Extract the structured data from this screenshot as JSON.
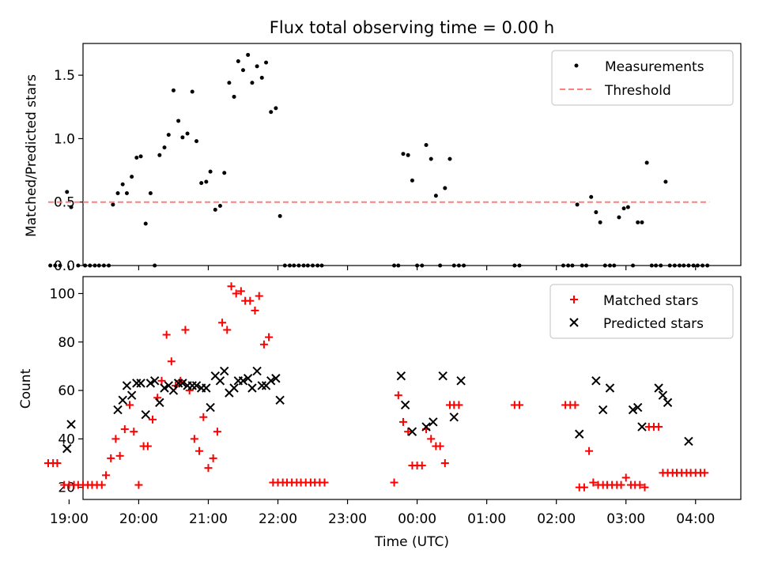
{
  "title": "Flux total observing time = 0.00 h",
  "chart_data": [
    {
      "type": "scatter",
      "title": "Flux total observing time = 0.00 h",
      "xlabel": "",
      "ylabel": "Matched/Predicted stars",
      "x_unit": "hours since 00:00 UTC (negative = previous day)",
      "xlim": [
        -4.8,
        4.65
      ],
      "ylim": [
        0,
        1.75
      ],
      "yticks": [
        0.0,
        0.5,
        1.0,
        1.5
      ],
      "ytick_labels": [
        "0.0",
        "0.5",
        "1.0",
        "1.5"
      ],
      "legend_position": "top-right",
      "colors": {
        "measurements": "#000000",
        "threshold": "#ff7f7f"
      },
      "series": [
        {
          "name": "Measurements",
          "kind": "points",
          "x": [
            -5.27,
            -5.2,
            -5.13,
            -5.03,
            -4.97,
            -4.87,
            -4.77,
            -4.7,
            -4.63,
            -4.57,
            -4.5,
            -4.43,
            -4.37,
            -4.3,
            -4.23,
            -4.17,
            -4.1,
            -4.03,
            -3.97,
            -3.9,
            -3.83,
            -3.77,
            -3.7,
            -3.63,
            -3.57,
            -3.5,
            -3.43,
            -3.37,
            -3.3,
            -3.23,
            -3.17,
            -3.1,
            -3.03,
            -2.97,
            -2.9,
            -2.83,
            -2.77,
            -2.7,
            -2.63,
            -2.57,
            -2.5,
            -2.43,
            -2.37,
            -2.3,
            -2.23,
            -2.17,
            -2.1,
            -2.03,
            -1.97,
            -1.9,
            -1.83,
            -1.77,
            -1.7,
            -1.63,
            -1.57,
            -1.5,
            -1.43,
            -1.37,
            -0.33,
            -0.27,
            -0.2,
            -0.13,
            -0.07,
            0.0,
            0.07,
            0.13,
            0.2,
            0.27,
            0.33,
            0.4,
            0.47,
            0.53,
            0.6,
            0.67,
            1.4,
            1.47,
            2.1,
            2.17,
            2.23,
            2.3,
            2.37,
            2.43,
            2.5,
            2.57,
            2.63,
            2.7,
            2.77,
            2.83,
            2.9,
            2.97,
            3.03,
            3.1,
            3.17,
            3.23,
            3.3,
            3.37,
            3.43,
            3.5,
            3.57,
            3.63,
            3.7,
            3.77,
            3.83,
            3.9,
            3.97,
            4.03,
            4.1,
            4.17
          ],
          "y": [
            0.0,
            0.0,
            0.0,
            0.58,
            0.46,
            0.0,
            0.0,
            0.0,
            0.0,
            0.0,
            0.0,
            0.0,
            0.48,
            0.57,
            0.64,
            0.57,
            0.7,
            0.85,
            0.86,
            0.33,
            0.57,
            0.0,
            0.87,
            0.93,
            1.03,
            1.38,
            1.14,
            1.01,
            1.04,
            1.37,
            0.98,
            0.65,
            0.66,
            0.74,
            0.44,
            0.47,
            0.73,
            1.44,
            1.33,
            1.61,
            1.54,
            1.66,
            1.44,
            1.57,
            1.48,
            1.6,
            1.21,
            1.24,
            0.39,
            0.0,
            0.0,
            0.0,
            0.0,
            0.0,
            0.0,
            0.0,
            0.0,
            0.0,
            0.0,
            0.0,
            0.88,
            0.87,
            0.67,
            0.0,
            0.0,
            0.95,
            0.84,
            0.55,
            0.0,
            0.61,
            0.84,
            0.0,
            0.0,
            0.0,
            0.0,
            0.0,
            0.0,
            0.0,
            0.0,
            0.48,
            0.0,
            0.0,
            0.54,
            0.42,
            0.34,
            0.0,
            0.0,
            0.0,
            0.38,
            0.45,
            0.46,
            0.0,
            0.34,
            0.34,
            0.81,
            0.0,
            0.0,
            0.0,
            0.66,
            0.0,
            0.0,
            0.0,
            0.0,
            0.0,
            0.0,
            0.0,
            0.0,
            0.0
          ]
        },
        {
          "name": "Threshold",
          "kind": "dashed-line",
          "x": [
            -5.3,
            4.2
          ],
          "y": [
            0.5,
            0.5
          ]
        }
      ]
    },
    {
      "type": "scatter",
      "title": "",
      "xlabel": "Time (UTC)",
      "ylabel": "Count",
      "x_unit": "hours since 00:00 UTC (negative = previous day)",
      "xlim": [
        -4.8,
        4.65
      ],
      "ylim": [
        15,
        107
      ],
      "yticks": [
        20,
        40,
        60,
        80,
        100
      ],
      "ytick_labels": [
        "20",
        "40",
        "60",
        "80",
        "100"
      ],
      "xticks": [
        -5,
        -4,
        -3,
        -2,
        -1,
        0,
        1,
        2,
        3,
        4
      ],
      "xtick_labels": [
        "19:00",
        "20:00",
        "21:00",
        "22:00",
        "23:00",
        "00:00",
        "01:00",
        "02:00",
        "03:00",
        "04:00"
      ],
      "legend_position": "top-right",
      "colors": {
        "matched": "#ff0000",
        "predicted": "#000000"
      },
      "series": [
        {
          "name": "Matched stars",
          "kind": "plus",
          "x": [
            -5.3,
            -5.23,
            -5.17,
            -5.07,
            -5.0,
            -4.93,
            -4.87,
            -4.8,
            -4.73,
            -4.67,
            -4.6,
            -4.53,
            -4.47,
            -4.4,
            -4.33,
            -4.27,
            -4.2,
            -4.13,
            -4.07,
            -4.0,
            -3.93,
            -3.87,
            -3.8,
            -3.73,
            -3.67,
            -3.6,
            -3.53,
            -3.47,
            -3.4,
            -3.33,
            -3.27,
            -3.2,
            -3.13,
            -3.07,
            -3.0,
            -2.93,
            -2.87,
            -2.8,
            -2.73,
            -2.67,
            -2.6,
            -2.53,
            -2.47,
            -2.4,
            -2.33,
            -2.27,
            -2.2,
            -2.13,
            -2.07,
            -2.0,
            -1.93,
            -1.87,
            -1.8,
            -1.73,
            -1.67,
            -1.6,
            -1.53,
            -1.47,
            -1.4,
            -1.33,
            -0.33,
            -0.27,
            -0.2,
            -0.13,
            -0.07,
            0.0,
            0.07,
            0.13,
            0.2,
            0.27,
            0.33,
            0.4,
            0.47,
            0.53,
            0.6,
            1.4,
            1.47,
            2.13,
            2.2,
            2.27,
            2.33,
            2.4,
            2.47,
            2.53,
            2.6,
            2.67,
            2.73,
            2.8,
            2.87,
            2.93,
            3.0,
            3.07,
            3.13,
            3.2,
            3.27,
            3.33,
            3.4,
            3.47,
            3.53,
            3.6,
            3.67,
            3.73,
            3.8,
            3.87,
            3.93,
            4.0,
            4.07,
            4.13
          ],
          "y": [
            30,
            30,
            30,
            21,
            21,
            21,
            21,
            21,
            21,
            21,
            21,
            21,
            25,
            32,
            40,
            33,
            44,
            54,
            43,
            21,
            37,
            37,
            48,
            57,
            64,
            83,
            72,
            62,
            64,
            85,
            60,
            40,
            35,
            49,
            28,
            32,
            43,
            88,
            85,
            103,
            100,
            101,
            97,
            97,
            93,
            99,
            79,
            82,
            22,
            22,
            22,
            22,
            22,
            22,
            22,
            22,
            22,
            22,
            22,
            22,
            22,
            58,
            47,
            43,
            29,
            29,
            29,
            44,
            40,
            37,
            37,
            30,
            54,
            54,
            54,
            54,
            54,
            54,
            54,
            54,
            20,
            20,
            35,
            22,
            21,
            21,
            21,
            21,
            21,
            21,
            24,
            21,
            21,
            21,
            20,
            45,
            45,
            45,
            26,
            26,
            26,
            26,
            26,
            26,
            26,
            26,
            26,
            26
          ],
          "notes": "approximate values read from chart"
        },
        {
          "name": "Predicted stars",
          "kind": "x",
          "x": [
            -5.03,
            -4.97,
            -4.3,
            -4.23,
            -4.17,
            -4.1,
            -4.03,
            -3.97,
            -3.9,
            -3.83,
            -3.77,
            -3.7,
            -3.63,
            -3.57,
            -3.5,
            -3.43,
            -3.37,
            -3.3,
            -3.23,
            -3.17,
            -3.1,
            -3.03,
            -2.97,
            -2.9,
            -2.83,
            -2.77,
            -2.7,
            -2.63,
            -2.57,
            -2.5,
            -2.43,
            -2.37,
            -2.3,
            -2.23,
            -2.17,
            -2.1,
            -2.03,
            -1.97,
            -0.23,
            -0.17,
            -0.07,
            0.13,
            0.23,
            0.37,
            0.53,
            0.63,
            2.33,
            2.57,
            2.67,
            2.77,
            3.1,
            3.17,
            3.23,
            3.47,
            3.53,
            3.6,
            3.9
          ],
          "y": [
            36,
            46,
            52,
            56,
            62,
            58,
            63,
            63,
            50,
            63,
            64,
            55,
            61,
            62,
            60,
            63,
            63,
            62,
            62,
            62,
            61,
            61,
            53,
            66,
            64,
            68,
            59,
            61,
            64,
            64,
            65,
            61,
            68,
            62,
            62,
            64,
            65,
            56,
            66,
            54,
            43,
            45,
            47,
            66,
            49,
            64,
            42,
            64,
            52,
            61,
            52,
            53,
            45,
            61,
            58,
            55,
            39
          ]
        }
      ]
    }
  ]
}
